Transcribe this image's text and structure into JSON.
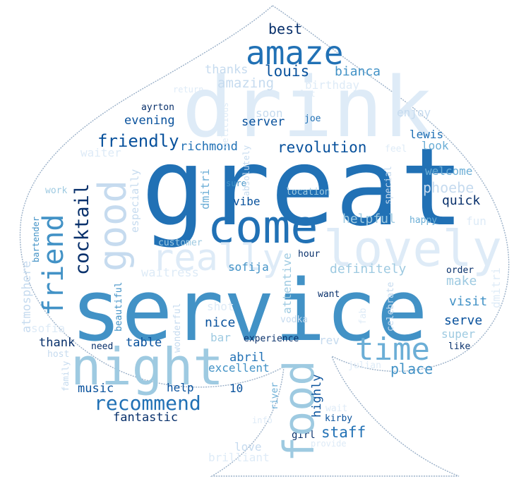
{
  "palette": {
    "c1": "#08306b",
    "c2": "#08519c",
    "c3": "#2171b5",
    "c4": "#4292c6",
    "c5": "#6baed6",
    "c6": "#9ecae1",
    "c7": "#c6dbef",
    "c8": "#deebf7",
    "outline": "#9ab0c8"
  },
  "words": {
    "great": "great",
    "service": "service",
    "drink": "drink",
    "lovely": "lovely",
    "night": "night",
    "come": "come",
    "food": "food",
    "amaze": "amaze",
    "good": "good",
    "friend": "friend",
    "time": "time",
    "really": "really",
    "cocktail": "cocktail",
    "recommend": "recommend",
    "friendly": "friendly",
    "revolution": "revolution",
    "louis": "louis",
    "bianca": "bianca",
    "best": "best",
    "thanks": "thanks",
    "amazing": "amazing",
    "birthday": "birthday",
    "return": "return",
    "lot": "lot",
    "ayrton": "ayrton",
    "soon": "soon",
    "enjoy": "enjoy",
    "joe": "joe",
    "evening": "evening",
    "server": "server",
    "lewis": "lewis",
    "richmond": "richmond",
    "look": "look",
    "waiter": "waiter",
    "feel": "feel",
    "welcome": "welcome",
    "phoebe": "phoebe",
    "work": "work",
    "especially": "especially",
    "dmitri": "dmitri",
    "sure": "sure",
    "location": "location",
    "special": "special",
    "vibe": "vibe",
    "quick": "quick",
    "bartender": "bartender",
    "absolutely": "absolutely",
    "delicious": "delicious",
    "helpful": "helpful",
    "happy": "happy",
    "fun": "fun",
    "customer": "customer",
    "atmosphere": "atmosphere",
    "waitress": "waitress",
    "sofija": "sofija",
    "definitely": "definitely",
    "hour": "hour",
    "order": "order",
    "attentive": "attentive",
    "make": "make",
    "shot": "shot",
    "want": "want",
    "celebrate": "celebrate",
    "visit": "visit",
    "sofia": "sofia",
    "beautiful": "beautiful",
    "nice": "nice",
    "vodka": "vodka",
    "serve": "serve",
    "fab": "fab",
    "wonderful": "wonderful",
    "super": "super",
    "thank": "thank",
    "table": "table",
    "experience": "experience",
    "rev": "rev",
    "like": "like",
    "need": "need",
    "bar": "bar",
    "abril": "abril",
    "host": "host",
    "excellent": "excellent",
    "place": "place",
    "julian": "julian",
    "family": "family",
    "music": "music",
    "help": "help",
    "ten": "10",
    "river": "river",
    "highly": "highly",
    "wait": "wait",
    "fantastic": "fantastic",
    "kirby": "kirby",
    "info": "info",
    "staff": "staff",
    "girl": "girl",
    "provide": "provide",
    "love": "love",
    "brilliant": "brilliant"
  }
}
